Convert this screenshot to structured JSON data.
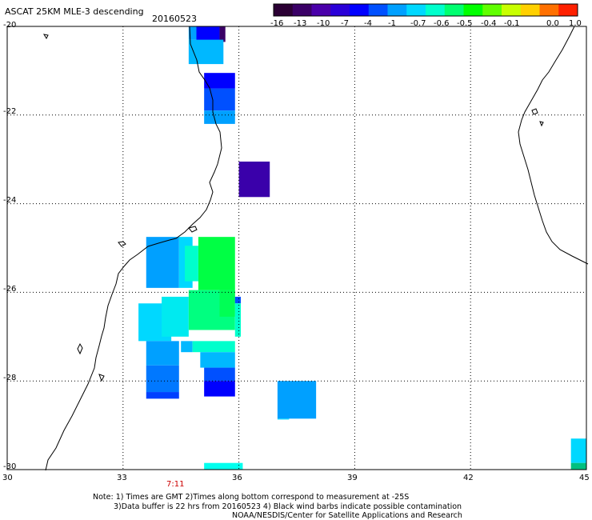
{
  "header": {
    "title": "ASCAT 25KM MLE-3 descending",
    "date": "20160523"
  },
  "colorbar": {
    "colors": [
      "#2b0034",
      "#3a0066",
      "#4a00aa",
      "#2a00d8",
      "#0000ff",
      "#0050ff",
      "#00a0ff",
      "#00d8ff",
      "#00ffcc",
      "#00ff70",
      "#00ff00",
      "#60ff00",
      "#c8ff00",
      "#ffd000",
      "#ff7000",
      "#ff2000"
    ],
    "labels": [
      "-16",
      "-13",
      "-10",
      "-7",
      "-4",
      "-1",
      "-0.7",
      "-0.6",
      "-0.5",
      "-0.4",
      "-0.1",
      "0.0",
      "1.0"
    ]
  },
  "axes": {
    "y_labels": [
      "-20",
      "-22",
      "-24",
      "-26",
      "-28",
      "-30"
    ],
    "x_labels": [
      "30",
      "33",
      "36",
      "39",
      "42",
      "45"
    ]
  },
  "time_label": "7:11",
  "notes": {
    "line1": "Note: 1) Times are GMT 2)Times along bottom correspond to measurement at -25S",
    "line2": "3)Data buffer is 22 hrs from 20160523 4) Black wind barbs indicate possible contamination",
    "line3": "NOAA/NESDIS/Center for Satellite Applications and Research"
  },
  "map": {
    "lon_range": [
      30,
      45
    ],
    "lat_range": [
      -30,
      -20
    ],
    "grid": "dotted",
    "cells": [
      {
        "lon": 34.7,
        "lat": -20.0,
        "w": 0.2,
        "h": 0.3,
        "color": "#00a0ff"
      },
      {
        "lon": 34.9,
        "lat": -20.0,
        "w": 0.6,
        "h": 0.35,
        "color": "#0000ff"
      },
      {
        "lon": 35.5,
        "lat": -20.0,
        "w": 0.15,
        "h": 0.35,
        "color": "#3a0066"
      },
      {
        "lon": 34.7,
        "lat": -20.3,
        "w": 0.9,
        "h": 0.55,
        "color": "#00b8ff"
      },
      {
        "lon": 35.1,
        "lat": -21.05,
        "w": 0.8,
        "h": 0.35,
        "color": "#0000ff"
      },
      {
        "lon": 35.1,
        "lat": -21.4,
        "w": 0.8,
        "h": 0.5,
        "color": "#0050ff"
      },
      {
        "lon": 35.1,
        "lat": -21.9,
        "w": 0.8,
        "h": 0.3,
        "color": "#00a0ff"
      },
      {
        "lon": 36.0,
        "lat": -23.05,
        "w": 0.8,
        "h": 0.8,
        "color": "#3a00aa"
      },
      {
        "lon": 33.6,
        "lat": -24.75,
        "w": 0.85,
        "h": 1.15,
        "color": "#00a0ff"
      },
      {
        "lon": 34.45,
        "lat": -24.75,
        "w": 0.35,
        "h": 1.15,
        "color": "#00d8ff"
      },
      {
        "lon": 34.6,
        "lat": -24.95,
        "w": 0.35,
        "h": 0.8,
        "color": "#00ffcc"
      },
      {
        "lon": 34.95,
        "lat": -24.75,
        "w": 0.95,
        "h": 1.2,
        "color": "#00ff44"
      },
      {
        "lon": 33.4,
        "lat": -26.25,
        "w": 0.85,
        "h": 0.85,
        "color": "#00d8ff"
      },
      {
        "lon": 34.0,
        "lat": -26.1,
        "w": 0.7,
        "h": 0.9,
        "color": "#00eaf0"
      },
      {
        "lon": 34.7,
        "lat": -25.95,
        "w": 1.2,
        "h": 0.9,
        "color": "#00ff80"
      },
      {
        "lon": 35.5,
        "lat": -25.95,
        "w": 0.4,
        "h": 0.6,
        "color": "#00ff55"
      },
      {
        "lon": 35.9,
        "lat": -26.1,
        "w": 0.15,
        "h": 0.15,
        "color": "#0050ff"
      },
      {
        "lon": 35.9,
        "lat": -26.25,
        "w": 0.15,
        "h": 0.75,
        "color": "#00ffcc"
      },
      {
        "lon": 33.6,
        "lat": -27.1,
        "w": 0.85,
        "h": 0.55,
        "color": "#00a0ff"
      },
      {
        "lon": 33.6,
        "lat": -27.65,
        "w": 0.85,
        "h": 0.6,
        "color": "#0078ff"
      },
      {
        "lon": 33.6,
        "lat": -28.25,
        "w": 0.85,
        "h": 0.15,
        "color": "#0040ff"
      },
      {
        "lon": 34.5,
        "lat": -27.1,
        "w": 0.3,
        "h": 0.25,
        "color": "#00b8ff"
      },
      {
        "lon": 34.8,
        "lat": -27.1,
        "w": 1.1,
        "h": 0.25,
        "color": "#00ffcc"
      },
      {
        "lon": 35.0,
        "lat": -27.35,
        "w": 0.9,
        "h": 0.35,
        "color": "#00b8ff"
      },
      {
        "lon": 35.1,
        "lat": -27.7,
        "w": 0.8,
        "h": 0.3,
        "color": "#0050ff"
      },
      {
        "lon": 35.1,
        "lat": -28.0,
        "w": 0.8,
        "h": 0.35,
        "color": "#0000ff"
      },
      {
        "lon": 37.0,
        "lat": -28.0,
        "w": 1.0,
        "h": 0.85,
        "color": "#00a0ff"
      },
      {
        "lon": 37.0,
        "lat": -28.85,
        "w": 0.3,
        "h": 0.02,
        "color": "#00d8ff"
      },
      {
        "lon": 44.6,
        "lat": -29.3,
        "w": 0.4,
        "h": 0.55,
        "color": "#00d8ff"
      },
      {
        "lon": 44.6,
        "lat": -29.85,
        "w": 0.4,
        "h": 0.15,
        "color": "#00c080"
      },
      {
        "lon": 35.1,
        "lat": -29.85,
        "w": 1.0,
        "h": 0.15,
        "color": "#00ffee"
      }
    ]
  }
}
